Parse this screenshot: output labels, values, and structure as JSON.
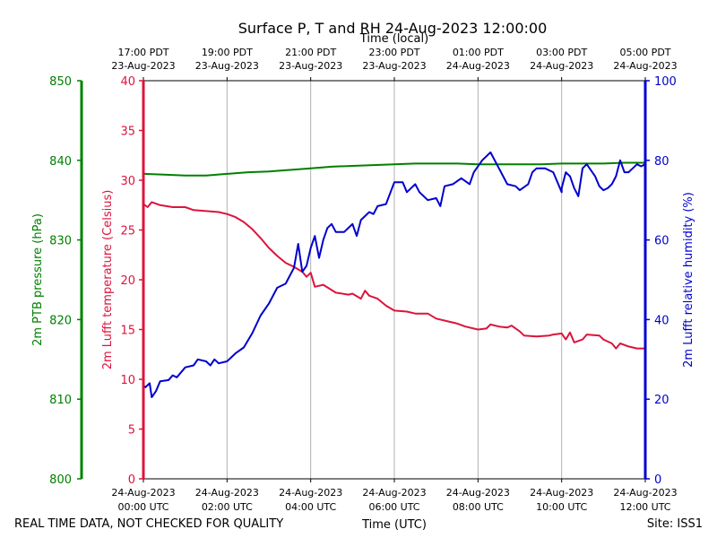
{
  "chart_data": {
    "type": "line",
    "title": "Surface P, T and RH 24-Aug-2023 12:00:00",
    "top_axis_label": "Time (local)",
    "xlabel": "Time (UTC)",
    "footer_left": "REAL TIME DATA, NOT CHECKED FOR QUALITY",
    "footer_right": "Site: ISS1",
    "colors": {
      "pressure": "#008000",
      "temperature": "#dc143c",
      "humidity": "#0000cd",
      "grid": "#b0b0b0"
    },
    "xlim_hours_utc": [
      0,
      12
    ],
    "bottom_ticks": [
      {
        "h": 0,
        "l1": "24-Aug-2023",
        "l2": "00:00 UTC"
      },
      {
        "h": 2,
        "l1": "24-Aug-2023",
        "l2": "02:00 UTC"
      },
      {
        "h": 4,
        "l1": "24-Aug-2023",
        "l2": "04:00 UTC"
      },
      {
        "h": 6,
        "l1": "24-Aug-2023",
        "l2": "06:00 UTC"
      },
      {
        "h": 8,
        "l1": "24-Aug-2023",
        "l2": "08:00 UTC"
      },
      {
        "h": 10,
        "l1": "24-Aug-2023",
        "l2": "10:00 UTC"
      },
      {
        "h": 12,
        "l1": "24-Aug-2023",
        "l2": "12:00 UTC"
      }
    ],
    "top_ticks": [
      {
        "h": 0,
        "l1": "17:00 PDT",
        "l2": "23-Aug-2023"
      },
      {
        "h": 2,
        "l1": "19:00 PDT",
        "l2": "23-Aug-2023"
      },
      {
        "h": 4,
        "l1": "21:00 PDT",
        "l2": "23-Aug-2023"
      },
      {
        "h": 6,
        "l1": "23:00 PDT",
        "l2": "23-Aug-2023"
      },
      {
        "h": 8,
        "l1": "01:00 PDT",
        "l2": "24-Aug-2023"
      },
      {
        "h": 10,
        "l1": "03:00 PDT",
        "l2": "24-Aug-2023"
      },
      {
        "h": 12,
        "l1": "05:00 PDT",
        "l2": "24-Aug-2023"
      }
    ],
    "axes": {
      "pressure": {
        "label": "2m PTB pressure (hPa)",
        "ylim": [
          800,
          850
        ],
        "ticks": [
          800,
          810,
          820,
          830,
          840,
          850
        ]
      },
      "temperature": {
        "label": "2m Lufft temperature (Celsius)",
        "ylim": [
          0,
          40
        ],
        "ticks": [
          0,
          5,
          10,
          15,
          20,
          25,
          30,
          35,
          40
        ]
      },
      "humidity": {
        "label": "2m Lufft relative humidity (%)",
        "ylim": [
          0,
          100
        ],
        "ticks": [
          0,
          20,
          40,
          60,
          80,
          100
        ]
      }
    },
    "series": [
      {
        "axis": "pressure",
        "points": [
          [
            0,
            838.3
          ],
          [
            0.5,
            838.2
          ],
          [
            1,
            838.1
          ],
          [
            1.5,
            838.1
          ],
          [
            2,
            838.3
          ],
          [
            2.5,
            838.5
          ],
          [
            3,
            838.6
          ],
          [
            3.5,
            838.8
          ],
          [
            4,
            839.0
          ],
          [
            4.5,
            839.2
          ],
          [
            5,
            839.3
          ],
          [
            5.5,
            839.4
          ],
          [
            6,
            839.5
          ],
          [
            6.5,
            839.6
          ],
          [
            7,
            839.6
          ],
          [
            7.5,
            839.6
          ],
          [
            8,
            839.5
          ],
          [
            8.5,
            839.5
          ],
          [
            9,
            839.5
          ],
          [
            9.5,
            839.5
          ],
          [
            10,
            839.6
          ],
          [
            10.5,
            839.6
          ],
          [
            11,
            839.6
          ],
          [
            11.5,
            839.7
          ],
          [
            12,
            839.7
          ]
        ]
      },
      {
        "axis": "temperature",
        "points": [
          [
            0,
            27.6
          ],
          [
            0.1,
            27.3
          ],
          [
            0.2,
            27.8
          ],
          [
            0.4,
            27.5
          ],
          [
            0.7,
            27.3
          ],
          [
            1,
            27.3
          ],
          [
            1.2,
            27.0
          ],
          [
            1.5,
            26.9
          ],
          [
            1.8,
            26.8
          ],
          [
            2,
            26.6
          ],
          [
            2.2,
            26.3
          ],
          [
            2.4,
            25.8
          ],
          [
            2.6,
            25.1
          ],
          [
            2.8,
            24.2
          ],
          [
            3,
            23.2
          ],
          [
            3.2,
            22.4
          ],
          [
            3.4,
            21.7
          ],
          [
            3.6,
            21.3
          ],
          [
            3.8,
            20.8
          ],
          [
            3.9,
            20.3
          ],
          [
            4,
            20.7
          ],
          [
            4.1,
            19.3
          ],
          [
            4.3,
            19.5
          ],
          [
            4.6,
            18.7
          ],
          [
            4.9,
            18.5
          ],
          [
            5,
            18.6
          ],
          [
            5.2,
            18.1
          ],
          [
            5.3,
            18.9
          ],
          [
            5.4,
            18.4
          ],
          [
            5.6,
            18.1
          ],
          [
            5.8,
            17.4
          ],
          [
            6,
            16.9
          ],
          [
            6.3,
            16.8
          ],
          [
            6.5,
            16.6
          ],
          [
            6.8,
            16.6
          ],
          [
            7,
            16.1
          ],
          [
            7.3,
            15.8
          ],
          [
            7.5,
            15.6
          ],
          [
            7.7,
            15.3
          ],
          [
            8,
            15.0
          ],
          [
            8.2,
            15.1
          ],
          [
            8.3,
            15.5
          ],
          [
            8.5,
            15.3
          ],
          [
            8.7,
            15.2
          ],
          [
            8.8,
            15.4
          ],
          [
            9,
            14.8
          ],
          [
            9.1,
            14.4
          ],
          [
            9.4,
            14.3
          ],
          [
            9.7,
            14.4
          ],
          [
            9.8,
            14.5
          ],
          [
            10,
            14.6
          ],
          [
            10.1,
            14.0
          ],
          [
            10.2,
            14.7
          ],
          [
            10.3,
            13.7
          ],
          [
            10.5,
            14.0
          ],
          [
            10.6,
            14.5
          ],
          [
            10.9,
            14.4
          ],
          [
            11,
            14.0
          ],
          [
            11.2,
            13.6
          ],
          [
            11.3,
            13.1
          ],
          [
            11.4,
            13.6
          ],
          [
            11.6,
            13.3
          ],
          [
            11.8,
            13.1
          ],
          [
            12,
            13.1
          ]
        ]
      },
      {
        "axis": "humidity",
        "points": [
          [
            0,
            23.5
          ],
          [
            0.05,
            23
          ],
          [
            0.15,
            24
          ],
          [
            0.2,
            20.5
          ],
          [
            0.3,
            22
          ],
          [
            0.4,
            24.5
          ],
          [
            0.6,
            24.8
          ],
          [
            0.7,
            26
          ],
          [
            0.8,
            25.5
          ],
          [
            1,
            28
          ],
          [
            1.2,
            28.5
          ],
          [
            1.3,
            30
          ],
          [
            1.5,
            29.5
          ],
          [
            1.6,
            28.5
          ],
          [
            1.7,
            30
          ],
          [
            1.8,
            29
          ],
          [
            2,
            29.5
          ],
          [
            2.2,
            31.5
          ],
          [
            2.4,
            33
          ],
          [
            2.6,
            36.5
          ],
          [
            2.8,
            41
          ],
          [
            3,
            44
          ],
          [
            3.2,
            48
          ],
          [
            3.4,
            49
          ],
          [
            3.5,
            51
          ],
          [
            3.6,
            53
          ],
          [
            3.7,
            59
          ],
          [
            3.8,
            52
          ],
          [
            3.9,
            53.5
          ],
          [
            4,
            58
          ],
          [
            4.1,
            61
          ],
          [
            4.2,
            55.5
          ],
          [
            4.3,
            60
          ],
          [
            4.4,
            63
          ],
          [
            4.5,
            64
          ],
          [
            4.6,
            62
          ],
          [
            4.8,
            62
          ],
          [
            5,
            64
          ],
          [
            5.1,
            61
          ],
          [
            5.2,
            65
          ],
          [
            5.4,
            67
          ],
          [
            5.5,
            66.5
          ],
          [
            5.6,
            68.5
          ],
          [
            5.8,
            69
          ],
          [
            6,
            74.5
          ],
          [
            6.2,
            74.5
          ],
          [
            6.3,
            72
          ],
          [
            6.5,
            74
          ],
          [
            6.6,
            72
          ],
          [
            6.8,
            70
          ],
          [
            7,
            70.5
          ],
          [
            7.1,
            68.5
          ],
          [
            7.2,
            73.5
          ],
          [
            7.4,
            74
          ],
          [
            7.6,
            75.5
          ],
          [
            7.8,
            74
          ],
          [
            7.9,
            77
          ],
          [
            8.1,
            80
          ],
          [
            8.3,
            82
          ],
          [
            8.4,
            80
          ],
          [
            8.5,
            78
          ],
          [
            8.7,
            74
          ],
          [
            8.9,
            73.5
          ],
          [
            9,
            72.5
          ],
          [
            9.2,
            74
          ],
          [
            9.3,
            77
          ],
          [
            9.4,
            78
          ],
          [
            9.6,
            78
          ],
          [
            9.8,
            77
          ],
          [
            10,
            72
          ],
          [
            10,
            73
          ],
          [
            10.1,
            77
          ],
          [
            10.2,
            76
          ],
          [
            10.3,
            73
          ],
          [
            10.4,
            71
          ],
          [
            10.5,
            78
          ],
          [
            10.6,
            79
          ],
          [
            10.8,
            76
          ],
          [
            10.9,
            73.5
          ],
          [
            11,
            72.5
          ],
          [
            11.1,
            73
          ],
          [
            11.2,
            74
          ],
          [
            11.3,
            76
          ],
          [
            11.4,
            80
          ],
          [
            11.5,
            77
          ],
          [
            11.6,
            77
          ],
          [
            11.7,
            78
          ],
          [
            11.8,
            79
          ],
          [
            11.9,
            78.5
          ],
          [
            12,
            79
          ]
        ]
      }
    ]
  }
}
